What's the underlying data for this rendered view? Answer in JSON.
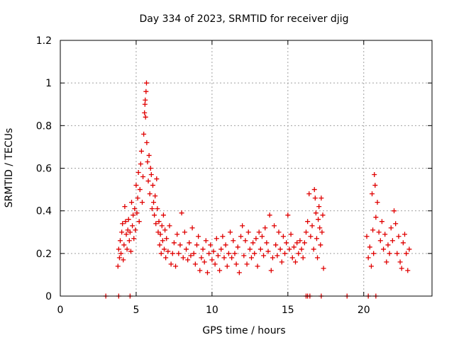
{
  "chart_data": {
    "type": "scatter",
    "title": "Day 334 of 2023, SRMTID for receiver djig",
    "xlabel": "GPS time / hours",
    "ylabel": "SRMTID / TECUs",
    "xlim": [
      0,
      24.5
    ],
    "ylim": [
      0,
      1.2
    ],
    "xticks": [
      0,
      5,
      10,
      15,
      20
    ],
    "yticks": [
      0,
      0.2,
      0.4,
      0.6,
      0.8,
      1,
      1.2
    ],
    "ytick_labels": [
      "0",
      "0.2",
      "0.4",
      "0.6",
      "0.8",
      "1",
      "1.2"
    ],
    "grid": true,
    "marker": "+",
    "color": "#e00000",
    "series": [
      {
        "name": "SRMTID",
        "points": [
          [
            3.0,
            0.0
          ],
          [
            3.85,
            0.0
          ],
          [
            4.6,
            0.0
          ],
          [
            16.2,
            0.0
          ],
          [
            16.3,
            0.0
          ],
          [
            16.45,
            0.0
          ],
          [
            17.2,
            0.0
          ],
          [
            18.9,
            0.0
          ],
          [
            20.3,
            0.0
          ],
          [
            20.8,
            0.0
          ],
          [
            3.8,
            0.14
          ],
          [
            3.85,
            0.22
          ],
          [
            3.9,
            0.18
          ],
          [
            3.95,
            0.26
          ],
          [
            4.0,
            0.2
          ],
          [
            4.05,
            0.3
          ],
          [
            4.1,
            0.34
          ],
          [
            4.15,
            0.17
          ],
          [
            4.2,
            0.24
          ],
          [
            4.25,
            0.42
          ],
          [
            4.3,
            0.35
          ],
          [
            4.35,
            0.29
          ],
          [
            4.4,
            0.22
          ],
          [
            4.45,
            0.31
          ],
          [
            4.5,
            0.36
          ],
          [
            4.55,
            0.26
          ],
          [
            4.6,
            0.3
          ],
          [
            4.65,
            0.21
          ],
          [
            4.7,
            0.44
          ],
          [
            4.75,
            0.33
          ],
          [
            4.8,
            0.38
          ],
          [
            4.85,
            0.27
          ],
          [
            4.9,
            0.41
          ],
          [
            4.95,
            0.31
          ],
          [
            5.0,
            0.52
          ],
          [
            5.05,
            0.39
          ],
          [
            5.1,
            0.46
          ],
          [
            5.15,
            0.58
          ],
          [
            5.2,
            0.35
          ],
          [
            5.25,
            0.5
          ],
          [
            5.3,
            0.62
          ],
          [
            5.35,
            0.68
          ],
          [
            5.4,
            0.44
          ],
          [
            5.45,
            0.56
          ],
          [
            5.5,
            0.76
          ],
          [
            5.55,
            0.86
          ],
          [
            5.58,
            0.9
          ],
          [
            5.6,
            0.92
          ],
          [
            5.62,
            0.84
          ],
          [
            5.65,
            0.96
          ],
          [
            5.68,
            1.0
          ],
          [
            5.7,
            0.72
          ],
          [
            5.75,
            0.63
          ],
          [
            5.8,
            0.54
          ],
          [
            5.85,
            0.66
          ],
          [
            5.9,
            0.48
          ],
          [
            5.95,
            0.6
          ],
          [
            6.0,
            0.57
          ],
          [
            6.05,
            0.41
          ],
          [
            6.1,
            0.52
          ],
          [
            6.15,
            0.44
          ],
          [
            6.2,
            0.38
          ],
          [
            6.25,
            0.47
          ],
          [
            6.3,
            0.34
          ],
          [
            6.35,
            0.55
          ],
          [
            6.4,
            0.41
          ],
          [
            6.45,
            0.3
          ],
          [
            6.5,
            0.35
          ],
          [
            6.55,
            0.24
          ],
          [
            6.6,
            0.29
          ],
          [
            6.65,
            0.2
          ],
          [
            6.7,
            0.33
          ],
          [
            6.75,
            0.26
          ],
          [
            6.8,
            0.38
          ],
          [
            6.85,
            0.22
          ],
          [
            6.9,
            0.31
          ],
          [
            6.95,
            0.18
          ],
          [
            7.0,
            0.27
          ],
          [
            7.1,
            0.21
          ],
          [
            7.2,
            0.33
          ],
          [
            7.3,
            0.15
          ],
          [
            7.4,
            0.2
          ],
          [
            7.5,
            0.25
          ],
          [
            7.6,
            0.14
          ],
          [
            7.7,
            0.29
          ],
          [
            7.8,
            0.2
          ],
          [
            7.9,
            0.24
          ],
          [
            8.0,
            0.39
          ],
          [
            8.1,
            0.18
          ],
          [
            8.2,
            0.3
          ],
          [
            8.3,
            0.22
          ],
          [
            8.4,
            0.17
          ],
          [
            8.5,
            0.25
          ],
          [
            8.6,
            0.19
          ],
          [
            8.7,
            0.32
          ],
          [
            8.8,
            0.2
          ],
          [
            8.9,
            0.15
          ],
          [
            9.0,
            0.24
          ],
          [
            9.1,
            0.28
          ],
          [
            9.2,
            0.12
          ],
          [
            9.3,
            0.18
          ],
          [
            9.4,
            0.22
          ],
          [
            9.5,
            0.16
          ],
          [
            9.6,
            0.26
          ],
          [
            9.7,
            0.11
          ],
          [
            9.8,
            0.2
          ],
          [
            9.9,
            0.24
          ],
          [
            10.0,
            0.17
          ],
          [
            10.1,
            0.21
          ],
          [
            10.2,
            0.15
          ],
          [
            10.3,
            0.27
          ],
          [
            10.4,
            0.19
          ],
          [
            10.5,
            0.12
          ],
          [
            10.6,
            0.22
          ],
          [
            10.7,
            0.28
          ],
          [
            10.8,
            0.18
          ],
          [
            10.9,
            0.24
          ],
          [
            11.0,
            0.14
          ],
          [
            11.1,
            0.2
          ],
          [
            11.2,
            0.3
          ],
          [
            11.3,
            0.18
          ],
          [
            11.4,
            0.26
          ],
          [
            11.5,
            0.2
          ],
          [
            11.6,
            0.15
          ],
          [
            11.7,
            0.23
          ],
          [
            11.8,
            0.11
          ],
          [
            11.9,
            0.28
          ],
          [
            12.0,
            0.33
          ],
          [
            12.1,
            0.19
          ],
          [
            12.2,
            0.26
          ],
          [
            12.3,
            0.15
          ],
          [
            12.4,
            0.3
          ],
          [
            12.5,
            0.22
          ],
          [
            12.6,
            0.18
          ],
          [
            12.7,
            0.25
          ],
          [
            12.8,
            0.2
          ],
          [
            12.9,
            0.27
          ],
          [
            13.0,
            0.14
          ],
          [
            13.1,
            0.3
          ],
          [
            13.2,
            0.22
          ],
          [
            13.3,
            0.28
          ],
          [
            13.4,
            0.19
          ],
          [
            13.5,
            0.32
          ],
          [
            13.6,
            0.25
          ],
          [
            13.7,
            0.21
          ],
          [
            13.8,
            0.38
          ],
          [
            13.9,
            0.12
          ],
          [
            14.0,
            0.18
          ],
          [
            14.1,
            0.33
          ],
          [
            14.2,
            0.24
          ],
          [
            14.3,
            0.19
          ],
          [
            14.4,
            0.3
          ],
          [
            14.5,
            0.22
          ],
          [
            14.6,
            0.16
          ],
          [
            14.7,
            0.28
          ],
          [
            14.8,
            0.2
          ],
          [
            14.9,
            0.25
          ],
          [
            15.0,
            0.38
          ],
          [
            15.1,
            0.22
          ],
          [
            15.2,
            0.29
          ],
          [
            15.3,
            0.18
          ],
          [
            15.4,
            0.23
          ],
          [
            15.5,
            0.16
          ],
          [
            15.6,
            0.25
          ],
          [
            15.7,
            0.2
          ],
          [
            15.8,
            0.26
          ],
          [
            15.9,
            0.22
          ],
          [
            16.0,
            0.18
          ],
          [
            16.1,
            0.25
          ],
          [
            16.2,
            0.3
          ],
          [
            16.3,
            0.35
          ],
          [
            16.4,
            0.48
          ],
          [
            16.5,
            0.28
          ],
          [
            16.6,
            0.33
          ],
          [
            16.7,
            0.22
          ],
          [
            16.75,
            0.5
          ],
          [
            16.8,
            0.46
          ],
          [
            16.85,
            0.39
          ],
          [
            16.9,
            0.27
          ],
          [
            16.95,
            0.18
          ],
          [
            17.0,
            0.36
          ],
          [
            17.05,
            0.42
          ],
          [
            17.1,
            0.32
          ],
          [
            17.15,
            0.24
          ],
          [
            17.2,
            0.46
          ],
          [
            17.25,
            0.3
          ],
          [
            17.3,
            0.38
          ],
          [
            17.35,
            0.13
          ],
          [
            20.2,
            0.28
          ],
          [
            20.3,
            0.18
          ],
          [
            20.4,
            0.23
          ],
          [
            20.5,
            0.14
          ],
          [
            20.55,
            0.48
          ],
          [
            20.6,
            0.31
          ],
          [
            20.65,
            0.2
          ],
          [
            20.7,
            0.57
          ],
          [
            20.75,
            0.52
          ],
          [
            20.8,
            0.37
          ],
          [
            20.9,
            0.44
          ],
          [
            21.0,
            0.3
          ],
          [
            21.1,
            0.26
          ],
          [
            21.2,
            0.35
          ],
          [
            21.3,
            0.22
          ],
          [
            21.4,
            0.29
          ],
          [
            21.5,
            0.16
          ],
          [
            21.6,
            0.24
          ],
          [
            21.7,
            0.2
          ],
          [
            21.8,
            0.32
          ],
          [
            21.9,
            0.26
          ],
          [
            22.0,
            0.4
          ],
          [
            22.1,
            0.34
          ],
          [
            22.2,
            0.2
          ],
          [
            22.3,
            0.28
          ],
          [
            22.4,
            0.16
          ],
          [
            22.5,
            0.13
          ],
          [
            22.6,
            0.25
          ],
          [
            22.7,
            0.29
          ],
          [
            22.8,
            0.2
          ],
          [
            22.9,
            0.12
          ],
          [
            23.0,
            0.22
          ]
        ]
      }
    ]
  }
}
